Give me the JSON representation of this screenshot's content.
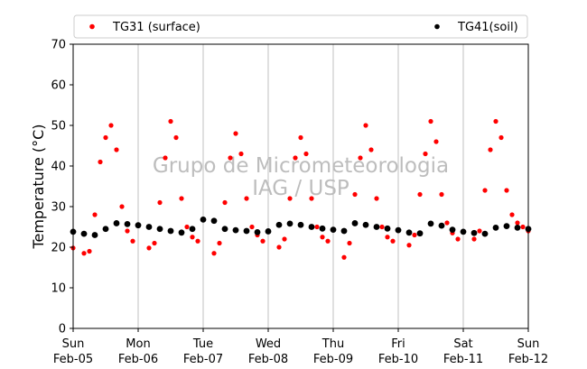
{
  "chart_data": {
    "type": "scatter",
    "title": "",
    "xlabel": "",
    "ylabel": "Temperature (°C)",
    "ylim": [
      0,
      70
    ],
    "yticks": [
      0,
      10,
      20,
      30,
      40,
      50,
      60,
      70
    ],
    "xlim": [
      "2017-02-05 00:00",
      "2017-02-12 00:00"
    ],
    "xticks": [
      {
        "date": "2017-02-05",
        "day": "Sun",
        "label": "Feb-05"
      },
      {
        "date": "2017-02-06",
        "day": "Mon",
        "label": "Feb-06"
      },
      {
        "date": "2017-02-07",
        "day": "Tue",
        "label": "Feb-07"
      },
      {
        "date": "2017-02-08",
        "day": "Wed",
        "label": "Feb-08"
      },
      {
        "date": "2017-02-09",
        "day": "Thu",
        "label": "Feb-09"
      },
      {
        "date": "2017-02-10",
        "day": "Fri",
        "label": "Feb-10"
      },
      {
        "date": "2017-02-11",
        "day": "Sat",
        "label": "Feb-11"
      },
      {
        "date": "2017-02-12",
        "day": "Sun",
        "label": "Feb-12"
      }
    ],
    "grid": "vertical",
    "legend_position": "top",
    "watermark": [
      "Grupo de Micrometeorologia",
      "IAG / USP"
    ],
    "series": [
      {
        "name": "TG31 (surface)",
        "color": "#ff0000",
        "marker": "dot",
        "x": [
          "2017-02-05 00:00",
          "2017-02-05 04:00",
          "2017-02-05 06:00",
          "2017-02-05 08:00",
          "2017-02-05 10:00",
          "2017-02-05 12:00",
          "2017-02-05 14:00",
          "2017-02-05 16:00",
          "2017-02-05 18:00",
          "2017-02-05 20:00",
          "2017-02-05 22:00",
          "2017-02-06 04:00",
          "2017-02-06 06:00",
          "2017-02-06 08:00",
          "2017-02-06 10:00",
          "2017-02-06 12:00",
          "2017-02-06 14:00",
          "2017-02-06 16:00",
          "2017-02-06 18:00",
          "2017-02-06 20:00",
          "2017-02-06 22:00",
          "2017-02-07 04:00",
          "2017-02-07 06:00",
          "2017-02-07 08:00",
          "2017-02-07 10:00",
          "2017-02-07 12:00",
          "2017-02-07 14:00",
          "2017-02-07 16:00",
          "2017-02-07 18:00",
          "2017-02-07 20:00",
          "2017-02-07 22:00",
          "2017-02-08 04:00",
          "2017-02-08 06:00",
          "2017-02-08 08:00",
          "2017-02-08 10:00",
          "2017-02-08 12:00",
          "2017-02-08 14:00",
          "2017-02-08 16:00",
          "2017-02-08 18:00",
          "2017-02-08 20:00",
          "2017-02-08 22:00",
          "2017-02-09 04:00",
          "2017-02-09 06:00",
          "2017-02-09 08:00",
          "2017-02-09 10:00",
          "2017-02-09 12:00",
          "2017-02-09 14:00",
          "2017-02-09 16:00",
          "2017-02-09 18:00",
          "2017-02-09 20:00",
          "2017-02-09 22:00",
          "2017-02-10 04:00",
          "2017-02-10 06:00",
          "2017-02-10 08:00",
          "2017-02-10 10:00",
          "2017-02-10 12:00",
          "2017-02-10 14:00",
          "2017-02-10 16:00",
          "2017-02-10 18:00",
          "2017-02-10 20:00",
          "2017-02-10 22:00",
          "2017-02-11 04:00",
          "2017-02-11 06:00",
          "2017-02-11 08:00",
          "2017-02-11 10:00",
          "2017-02-11 12:00",
          "2017-02-11 14:00",
          "2017-02-11 16:00",
          "2017-02-11 18:00",
          "2017-02-11 20:00",
          "2017-02-11 22:00",
          "2017-02-12 00:00"
        ],
        "y": [
          19.8,
          18.5,
          19.0,
          28,
          41,
          47,
          50,
          44,
          30,
          24,
          21.5,
          19.8,
          21,
          31,
          42,
          51,
          47,
          32,
          25,
          22.5,
          21.5,
          18.5,
          21,
          31,
          42,
          48,
          43,
          32,
          25,
          23,
          21.5,
          20,
          22,
          32,
          42,
          47,
          43,
          32,
          25,
          22.5,
          21.5,
          17.5,
          21,
          33,
          42,
          50,
          44,
          32,
          25,
          22.5,
          21.5,
          20.5,
          23,
          33,
          43,
          51,
          46,
          33,
          26,
          23.5,
          22,
          22,
          24,
          34,
          44,
          51,
          47,
          34,
          28,
          26,
          25,
          24
        ]
      },
      {
        "name": "TG41(soil)",
        "color": "#000000",
        "marker": "dot",
        "x": [
          "2017-02-05 00:00",
          "2017-02-05 04:00",
          "2017-02-05 08:00",
          "2017-02-05 12:00",
          "2017-02-05 16:00",
          "2017-02-05 20:00",
          "2017-02-06 00:00",
          "2017-02-06 04:00",
          "2017-02-06 08:00",
          "2017-02-06 12:00",
          "2017-02-06 16:00",
          "2017-02-06 20:00",
          "2017-02-07 00:00",
          "2017-02-07 04:00",
          "2017-02-07 08:00",
          "2017-02-07 12:00",
          "2017-02-07 16:00",
          "2017-02-07 20:00",
          "2017-02-08 00:00",
          "2017-02-08 04:00",
          "2017-02-08 08:00",
          "2017-02-08 12:00",
          "2017-02-08 16:00",
          "2017-02-08 20:00",
          "2017-02-09 00:00",
          "2017-02-09 04:00",
          "2017-02-09 08:00",
          "2017-02-09 12:00",
          "2017-02-09 16:00",
          "2017-02-09 20:00",
          "2017-02-10 00:00",
          "2017-02-10 04:00",
          "2017-02-10 08:00",
          "2017-02-10 12:00",
          "2017-02-10 16:00",
          "2017-02-10 20:00",
          "2017-02-11 00:00",
          "2017-02-11 04:00",
          "2017-02-11 08:00",
          "2017-02-11 12:00",
          "2017-02-11 16:00",
          "2017-02-11 20:00",
          "2017-02-12 00:00"
        ],
        "y": [
          23.8,
          23.3,
          23.0,
          24.5,
          25.9,
          25.7,
          25.4,
          25.0,
          24.5,
          24.0,
          23.6,
          24.5,
          26.8,
          26.5,
          24.5,
          24.2,
          24.0,
          23.7,
          23.9,
          25.5,
          25.8,
          25.5,
          25.0,
          24.6,
          24.3,
          24.0,
          25.9,
          25.5,
          25.0,
          24.6,
          24.2,
          23.6,
          23.4,
          25.8,
          25.3,
          24.3,
          23.8,
          23.5,
          23.3,
          24.8,
          25.2,
          24.8,
          24.5
        ]
      }
    ]
  }
}
